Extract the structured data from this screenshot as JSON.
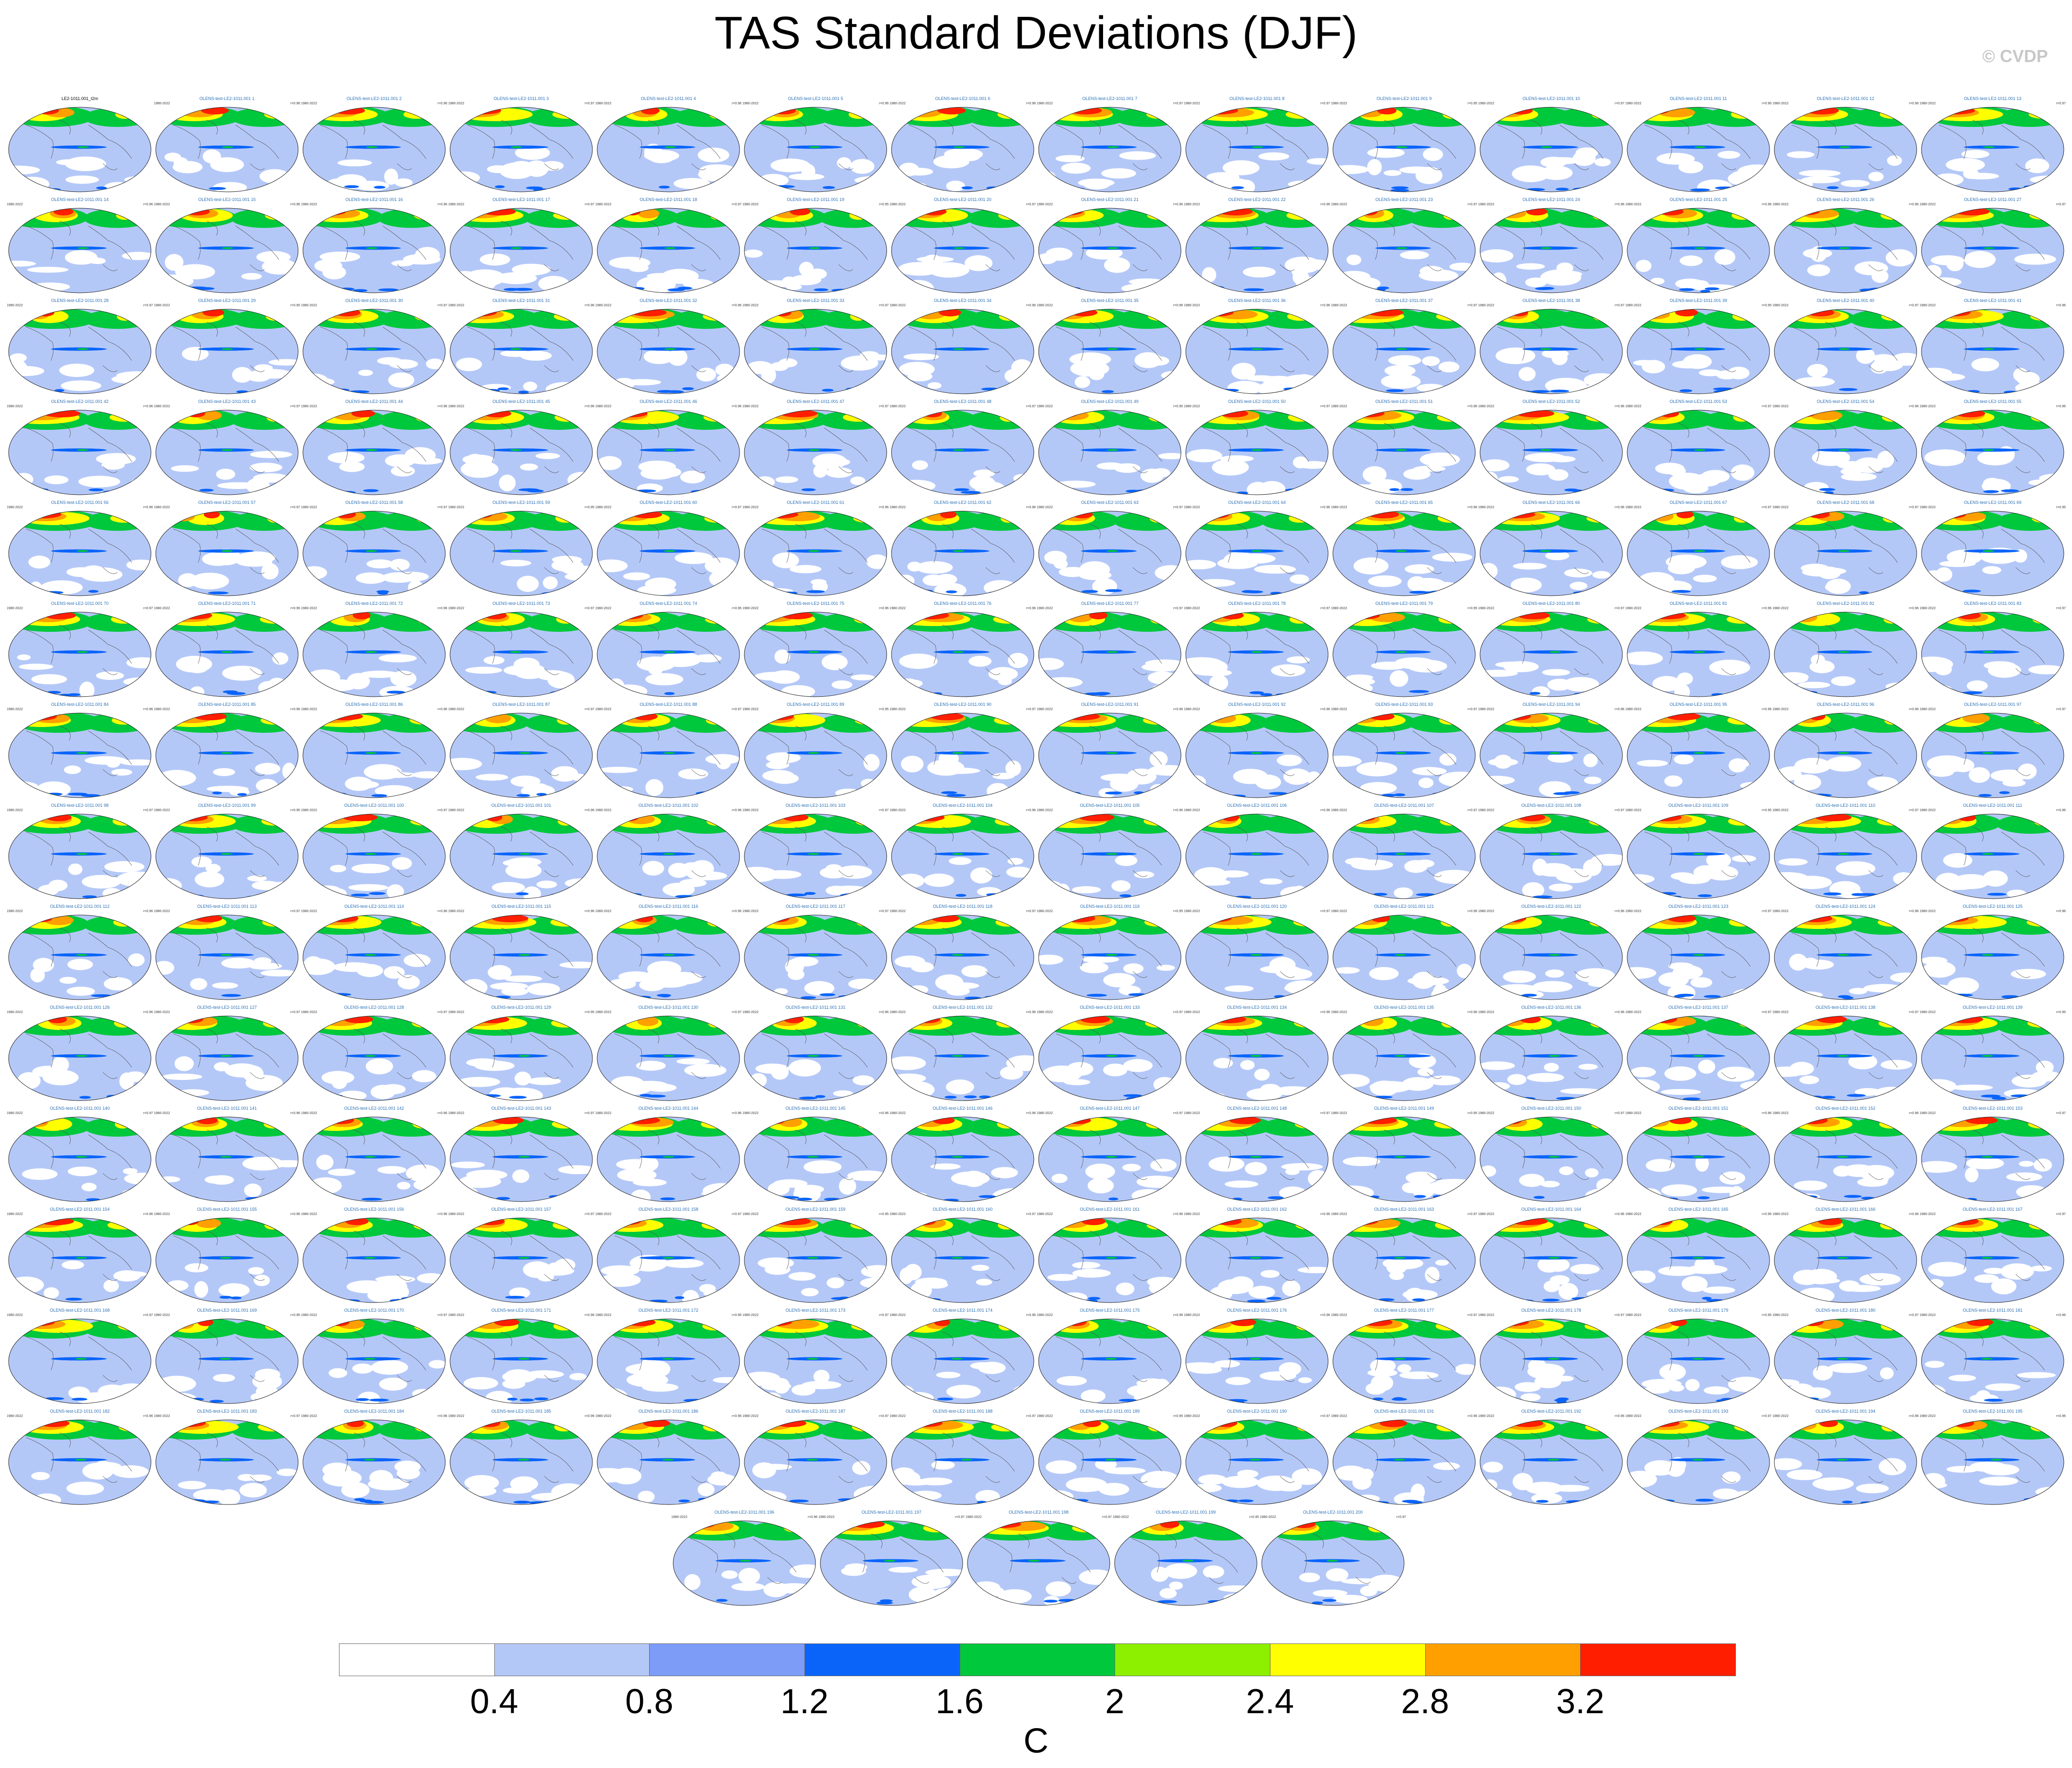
{
  "title": "TAS Standard Deviations (DJF)",
  "watermark": "© CVDP",
  "units": "C",
  "colorbar": {
    "levels": [
      "0.4",
      "0.8",
      "1.2",
      "1.6",
      "2",
      "2.4",
      "2.8",
      "3.2"
    ],
    "colors": [
      "#ffffff",
      "#b4c8f8",
      "#7c9cf8",
      "#0a64fa",
      "#00c83c",
      "#8cf000",
      "#ffff00",
      "#ffa000",
      "#ff1e00"
    ]
  },
  "chart_data": {
    "type": "map",
    "panel_count": 201,
    "obs_panel": {
      "title": "LE2-1011.001_t2m",
      "years": "1980-2022"
    },
    "member_prefix": "OLENS-test-LE2-1011.001",
    "member_years": "1980-2022",
    "member_count": 200,
    "pattern_r": [
      "r=0.97",
      "r=0.96",
      "r=0.96",
      "r=0.97",
      "r=0.96",
      "r=0.96",
      "r=0.96",
      "r=0.97",
      "r=0.97",
      "r=0.95"
    ],
    "note_values": "Spatial correlation values shown per panel range r=0.94 to r=0.98"
  }
}
